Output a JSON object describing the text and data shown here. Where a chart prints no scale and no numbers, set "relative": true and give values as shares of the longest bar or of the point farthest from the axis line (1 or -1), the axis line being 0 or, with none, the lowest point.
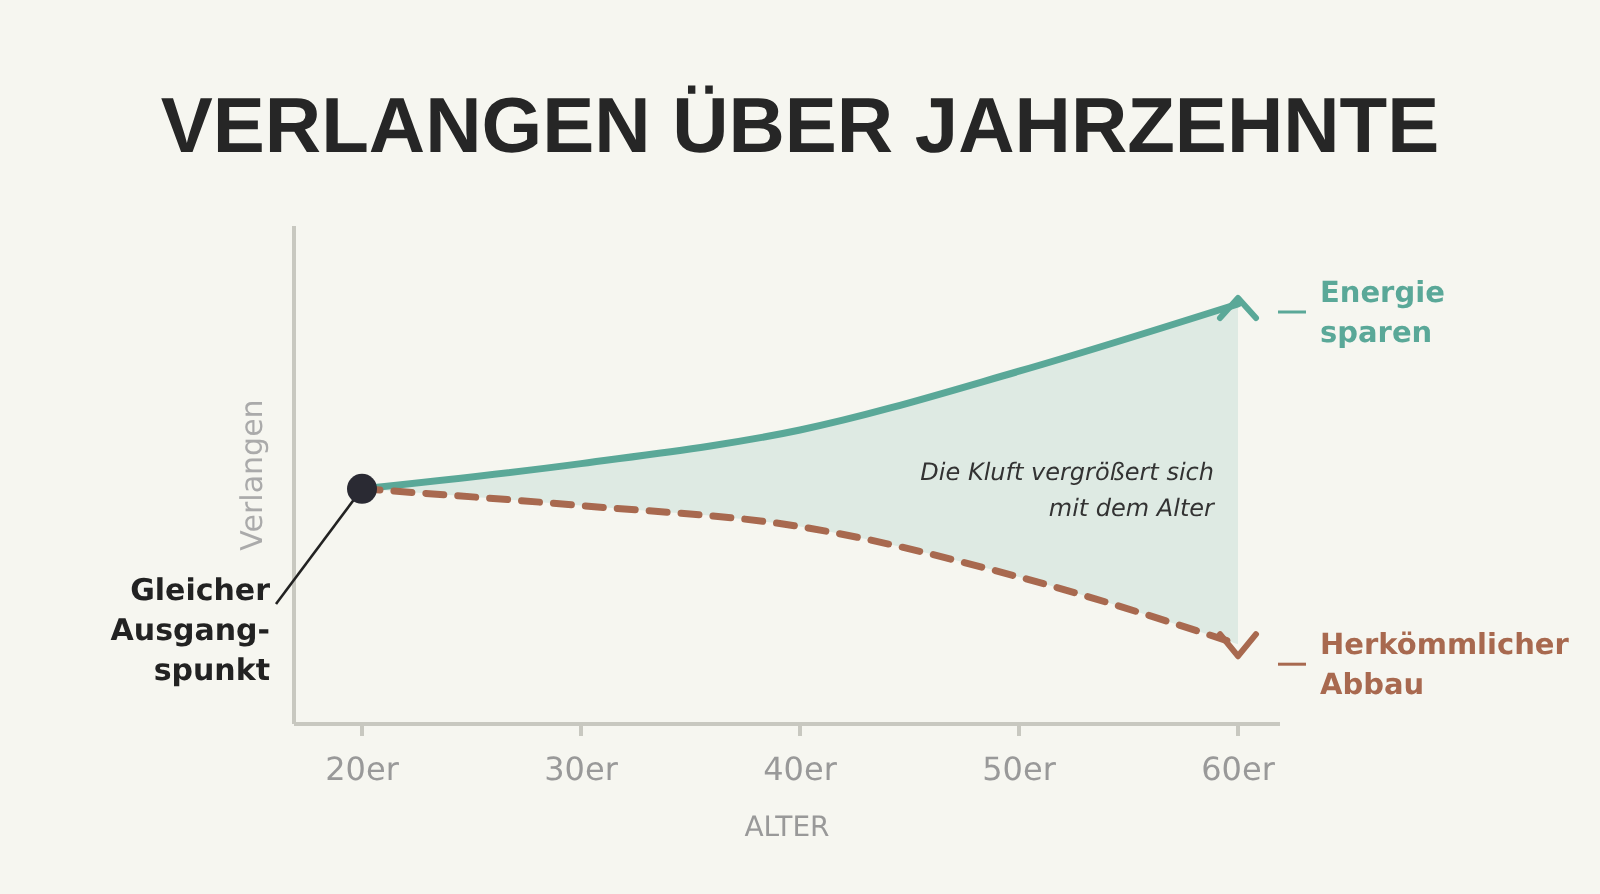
{
  "chart_data": {
    "type": "line",
    "title": "VERLANGEN ÜBER JAHRZEHNTE",
    "xlabel": "ALTER",
    "ylabel": "Verlangen",
    "relative": true,
    "categories": [
      "20er",
      "30er",
      "40er",
      "50er",
      "60er"
    ],
    "series": [
      {
        "name": "Energie sparen",
        "color": "#5aa898",
        "line_style": "solid",
        "values": [
          0.56,
          0.62,
          0.7,
          0.84,
          1
        ],
        "lower": [
          0.56,
          0.52,
          0.47,
          0.35,
          0.19
        ],
        "upper": [
          0.56,
          0.62,
          0.7,
          0.84,
          1
        ]
      },
      {
        "name": "Herkömmlicher Abbau",
        "color": "#a8694f",
        "line_style": "dashed",
        "values": [
          0.56,
          0.52,
          0.47,
          0.35,
          0.19
        ]
      }
    ],
    "annotations": [
      "Die Kluft vergrößert sich mit dem Alter",
      {
        "text": "Gleicher Ausgang-spunkt",
        "x": "20er",
        "y": 0.56
      }
    ],
    "legend": "right",
    "marker": "none"
  }
}
